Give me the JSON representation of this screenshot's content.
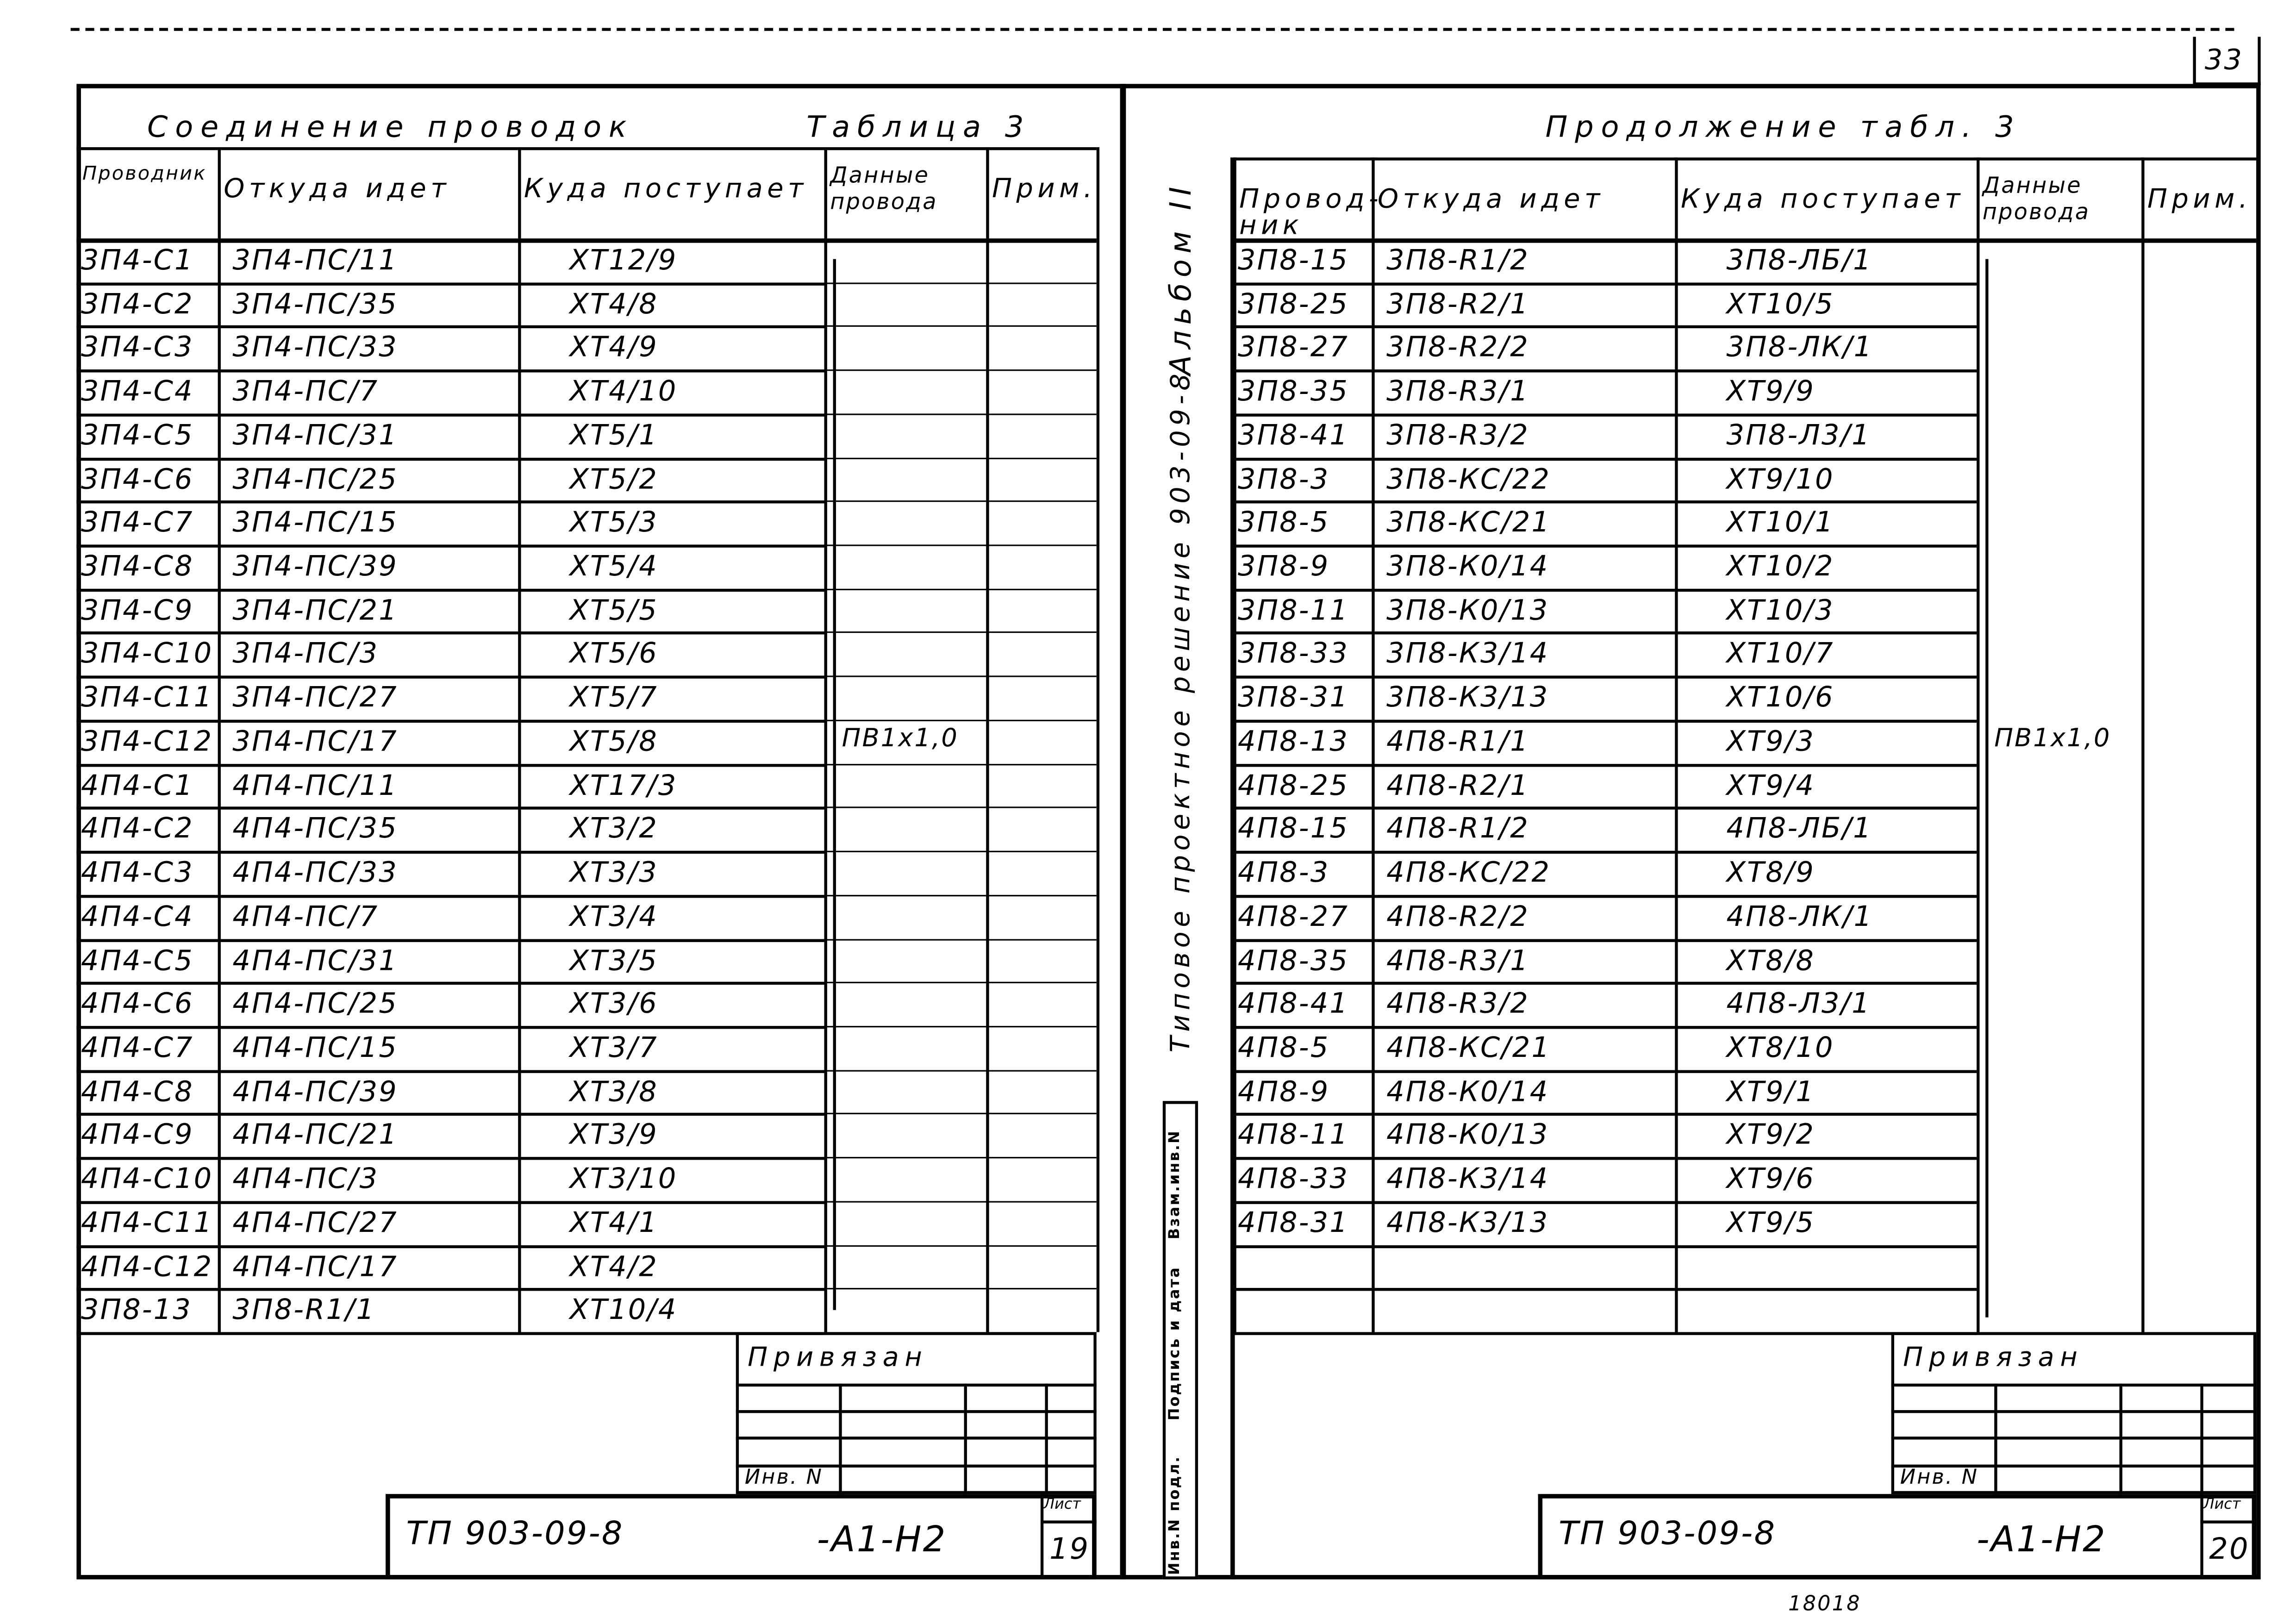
{
  "page_number": "33",
  "left_sheet": {
    "title": "Соединение проводок",
    "table_label": "Таблица 3",
    "headers": [
      "Проводник",
      "Откуда идет",
      "Куда поступает",
      "Данные провода",
      "Прим."
    ],
    "wire_data": "ПВ1х1,0",
    "rows": [
      [
        "3П4-С1",
        "3П4-ПС/11",
        "XT12/9"
      ],
      [
        "3П4-С2",
        "3П4-ПС/35",
        "XT4/8"
      ],
      [
        "3П4-С3",
        "3П4-ПС/33",
        "XT4/9"
      ],
      [
        "3П4-С4",
        "3П4-ПС/7",
        "XT4/10"
      ],
      [
        "3П4-С5",
        "3П4-ПС/31",
        "XT5/1"
      ],
      [
        "3П4-С6",
        "3П4-ПС/25",
        "XT5/2"
      ],
      [
        "3П4-С7",
        "3П4-ПС/15",
        "XT5/3"
      ],
      [
        "3П4-С8",
        "3П4-ПС/39",
        "XT5/4"
      ],
      [
        "3П4-С9",
        "3П4-ПС/21",
        "XT5/5"
      ],
      [
        "3П4-С10",
        "3П4-ПС/3",
        "XT5/6"
      ],
      [
        "3П4-С11",
        "3П4-ПС/27",
        "XT5/7"
      ],
      [
        "3П4-С12",
        "3П4-ПС/17",
        "XT5/8"
      ],
      [
        "4П4-С1",
        "4П4-ПС/11",
        "XT17/3"
      ],
      [
        "4П4-С2",
        "4П4-ПС/35",
        "XT3/2"
      ],
      [
        "4П4-С3",
        "4П4-ПС/33",
        "XT3/3"
      ],
      [
        "4П4-С4",
        "4П4-ПС/7",
        "XT3/4"
      ],
      [
        "4П4-С5",
        "4П4-ПС/31",
        "XT3/5"
      ],
      [
        "4П4-С6",
        "4П4-ПС/25",
        "XT3/6"
      ],
      [
        "4П4-С7",
        "4П4-ПС/15",
        "XT3/7"
      ],
      [
        "4П4-С8",
        "4П4-ПС/39",
        "XT3/8"
      ],
      [
        "4П4-С9",
        "4П4-ПС/21",
        "XT3/9"
      ],
      [
        "4П4-С10",
        "4П4-ПС/3",
        "XT3/10"
      ],
      [
        "4П4-С11",
        "4П4-ПС/27",
        "XT4/1"
      ],
      [
        "4П4-С12",
        "4П4-ПС/17",
        "XT4/2"
      ],
      [
        "3П8-13",
        "3П8-R1/1",
        "XT10/4"
      ]
    ],
    "stamp": {
      "bound_label": "Привязан",
      "inv_label": "Инв. N",
      "code": "ТП 903-09-8",
      "sheet_code": "-А1-Н2",
      "sheet_label": "Лист",
      "sheet_number": "19"
    }
  },
  "middle_strip": {
    "album": "Альбом II",
    "series": "Типовое проектное решение 903-09-8",
    "stamp_fields": [
      "Инв.N подл.",
      "Подпись и дата",
      "Взам.инв.N"
    ]
  },
  "right_sheet": {
    "title": "Продолжение табл. 3",
    "headers": [
      "Провод-ник",
      "Откуда идет",
      "Куда поступает",
      "Данные провода",
      "Прим."
    ],
    "wire_data": "ПВ1х1,0",
    "rows": [
      [
        "3П8-15",
        "3П8-R1/2",
        "3П8-ЛБ/1"
      ],
      [
        "3П8-25",
        "3П8-R2/1",
        "XT10/5"
      ],
      [
        "3П8-27",
        "3П8-R2/2",
        "3П8-ЛК/1"
      ],
      [
        "3П8-35",
        "3П8-R3/1",
        "XT9/9"
      ],
      [
        "3П8-41",
        "3П8-R3/2",
        "3П8-Л3/1"
      ],
      [
        "3П8-3",
        "3П8-КС/22",
        "XT9/10"
      ],
      [
        "3П8-5",
        "3П8-КС/21",
        "XT10/1"
      ],
      [
        "3П8-9",
        "3П8-К0/14",
        "XT10/2"
      ],
      [
        "3П8-11",
        "3П8-К0/13",
        "XT10/3"
      ],
      [
        "3П8-33",
        "3П8-К3/14",
        "XT10/7"
      ],
      [
        "3П8-31",
        "3П8-К3/13",
        "XT10/6"
      ],
      [
        "4П8-13",
        "4П8-R1/1",
        "XT9/3"
      ],
      [
        "4П8-25",
        "4П8-R2/1",
        "XT9/4"
      ],
      [
        "4П8-15",
        "4П8-R1/2",
        "4П8-ЛБ/1"
      ],
      [
        "4П8-3",
        "4П8-КС/22",
        "XT8/9"
      ],
      [
        "4П8-27",
        "4П8-R2/2",
        "4П8-ЛК/1"
      ],
      [
        "4П8-35",
        "4П8-R3/1",
        "XT8/8"
      ],
      [
        "4П8-41",
        "4П8-R3/2",
        "4П8-Л3/1"
      ],
      [
        "4П8-5",
        "4П8-КС/21",
        "XT8/10"
      ],
      [
        "4П8-9",
        "4П8-К0/14",
        "XT9/1"
      ],
      [
        "4П8-11",
        "4П8-К0/13",
        "XT9/2"
      ],
      [
        "4П8-33",
        "4П8-К3/14",
        "XT9/6"
      ],
      [
        "4П8-31",
        "4П8-К3/13",
        "XT9/5"
      ]
    ],
    "stamp": {
      "bound_label": "Привязан",
      "inv_label": "Инв. N",
      "code": "ТП 903-09-8",
      "sheet_code": "-А1-Н2",
      "sheet_label": "Лист",
      "sheet_number": "20"
    }
  },
  "footer_fragment": "18018"
}
